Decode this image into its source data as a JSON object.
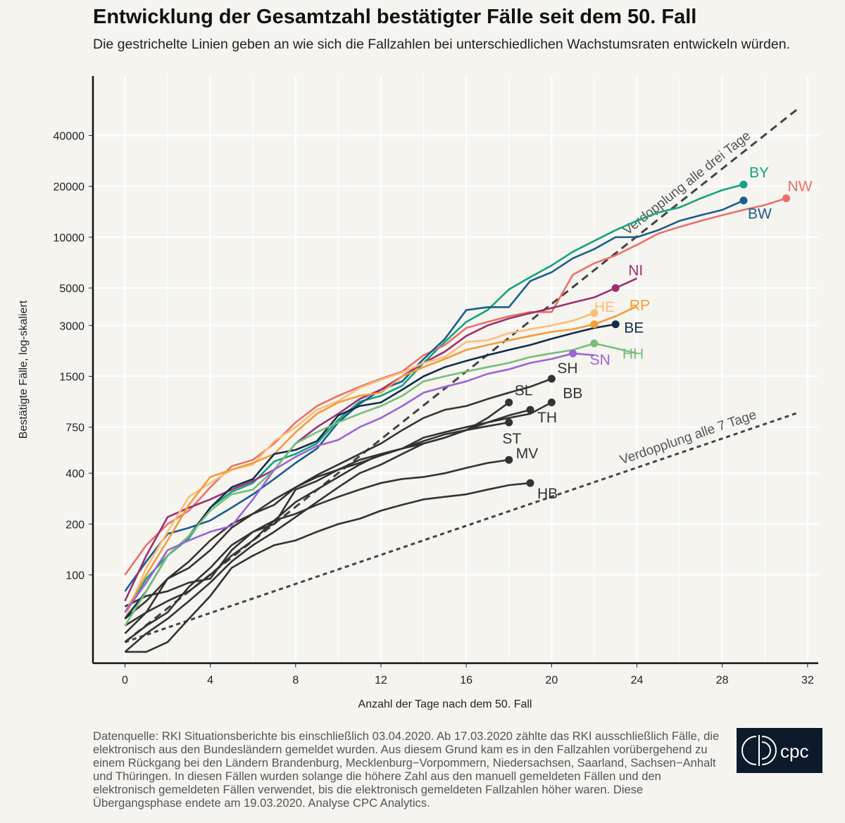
{
  "header": {
    "title": "Entwicklung der Gesamtzahl bestätigter Fälle seit dem 50. Fall",
    "subtitle": "Die gestrichelte Linien geben an wie sich die Fallzahlen bei unterschiedlichen Wachstumsraten entwickeln würden."
  },
  "chart_data": {
    "type": "line",
    "xlabel": "Anzahl der Tage nach dem 50. Fall",
    "ylabel": "Bestätigte Fälle, log-skaliert",
    "y_scale": "log",
    "xlim": [
      -1.5,
      32.5
    ],
    "ylim": [
      30,
      90000
    ],
    "x_ticks": [
      0,
      4,
      8,
      12,
      16,
      20,
      24,
      28,
      32
    ],
    "y_ticks": [
      100,
      200,
      400,
      750,
      1500,
      3000,
      5000,
      10000,
      20000,
      40000
    ],
    "grid": true,
    "legend": "none",
    "reference_lines": [
      {
        "label": "Verdopplung alle drei Tage",
        "x": [
          0,
          31.5
        ],
        "y": [
          40,
          57000
        ]
      },
      {
        "label": "Verdopplung alle 7 Tage",
        "x": [
          0,
          31.5
        ],
        "y": [
          40,
          908
        ]
      }
    ],
    "series": [
      {
        "name": "BY",
        "color": "#14a37f",
        "x": [
          0,
          1,
          2,
          3,
          4,
          5,
          6,
          7,
          8,
          9,
          10,
          11,
          12,
          13,
          14,
          15,
          16,
          17,
          18,
          19,
          20,
          21,
          22,
          23,
          24,
          25,
          26,
          27,
          28,
          29
        ],
        "values": [
          60,
          95,
          130,
          165,
          250,
          310,
          350,
          470,
          520,
          600,
          830,
          1060,
          1150,
          1320,
          1800,
          2400,
          3150,
          3700,
          4900,
          5800,
          6800,
          8200,
          9500,
          11000,
          12500,
          14000,
          15000,
          17000,
          19000,
          20500
        ]
      },
      {
        "name": "NW",
        "color": "#e8706a",
        "x": [
          0,
          1,
          2,
          3,
          4,
          5,
          6,
          7,
          8,
          9,
          10,
          11,
          12,
          13,
          14,
          15,
          16,
          17,
          18,
          19,
          20,
          21,
          22,
          23,
          24,
          25,
          26,
          27,
          28,
          29,
          30,
          31
        ],
        "values": [
          100,
          150,
          200,
          240,
          330,
          440,
          480,
          600,
          800,
          1000,
          1150,
          1300,
          1450,
          1600,
          2000,
          2300,
          2900,
          3150,
          3400,
          3600,
          3600,
          6000,
          7000,
          7800,
          9000,
          10500,
          11500,
          12500,
          13500,
          14500,
          15500,
          17000
        ]
      },
      {
        "name": "BW",
        "color": "#1a5d8f",
        "x": [
          0,
          1,
          2,
          3,
          4,
          5,
          6,
          7,
          8,
          9,
          10,
          11,
          12,
          13,
          14,
          15,
          16,
          17,
          18,
          19,
          20,
          21,
          22,
          23,
          24,
          25,
          26,
          27,
          28,
          29
        ],
        "values": [
          80,
          120,
          175,
          190,
          210,
          250,
          300,
          370,
          460,
          560,
          800,
          1030,
          1250,
          1400,
          1900,
          2500,
          3700,
          3850,
          3850,
          5500,
          6200,
          7500,
          8500,
          10000,
          10000,
          11000,
          12500,
          13500,
          14500,
          16500
        ]
      },
      {
        "name": "NI",
        "color": "#9c2f72",
        "x": [
          0,
          1,
          2,
          3,
          4,
          5,
          6,
          7,
          8,
          9,
          10,
          11,
          12,
          13,
          14,
          15,
          16,
          17,
          18,
          19,
          20,
          21,
          22,
          23,
          24
        ],
        "values": [
          70,
          130,
          220,
          250,
          280,
          320,
          360,
          420,
          600,
          750,
          900,
          1100,
          1250,
          1500,
          1800,
          2100,
          2600,
          3000,
          3300,
          3550,
          3800,
          4100,
          4400,
          5000,
          5700
        ]
      },
      {
        "name": "HE",
        "color": "#fbbe79",
        "x": [
          0,
          1,
          2,
          3,
          4,
          5,
          6,
          7,
          8,
          9,
          10,
          11,
          12,
          13,
          14,
          15,
          16,
          17,
          18,
          19,
          20,
          21,
          22
        ],
        "values": [
          55,
          110,
          180,
          290,
          350,
          420,
          450,
          620,
          750,
          950,
          1070,
          1280,
          1430,
          1580,
          1800,
          1950,
          2400,
          2450,
          2700,
          2850,
          3000,
          3200,
          3550
        ]
      },
      {
        "name": "RP",
        "color": "#f39c3a",
        "x": [
          0,
          1,
          2,
          3,
          4,
          5,
          6,
          7,
          8,
          9,
          10,
          11,
          12,
          13,
          14,
          15,
          16,
          17,
          18,
          19,
          20,
          21,
          22,
          23,
          24
        ],
        "values": [
          60,
          100,
          160,
          260,
          380,
          420,
          460,
          520,
          700,
          900,
          1050,
          1150,
          1200,
          1500,
          1700,
          1900,
          2150,
          2300,
          2450,
          2600,
          2750,
          2850,
          3050,
          3400,
          3900
        ]
      },
      {
        "name": "BE",
        "color": "#132c4d",
        "x": [
          0,
          1,
          2,
          3,
          4,
          5,
          6,
          7,
          8,
          9,
          10,
          11,
          12,
          13,
          14,
          15,
          16,
          17,
          18,
          19,
          20,
          21,
          22,
          23
        ],
        "values": [
          55,
          80,
          130,
          170,
          250,
          330,
          370,
          520,
          550,
          620,
          880,
          1000,
          1050,
          1250,
          1500,
          1700,
          1850,
          2000,
          2150,
          2300,
          2500,
          2700,
          2900,
          3050
        ]
      },
      {
        "name": "HH",
        "color": "#78bd7c",
        "x": [
          0,
          1,
          2,
          3,
          4,
          5,
          6,
          7,
          8,
          9,
          10,
          11,
          12,
          13,
          14,
          15,
          16,
          17,
          18,
          19,
          20,
          21,
          22,
          23,
          24
        ],
        "values": [
          50,
          80,
          130,
          170,
          240,
          300,
          320,
          420,
          600,
          700,
          800,
          900,
          1000,
          1150,
          1400,
          1500,
          1600,
          1700,
          1800,
          1950,
          2050,
          2150,
          2350,
          2200,
          2050
        ]
      },
      {
        "name": "SN",
        "color": "#9b64d6",
        "x": [
          0,
          1,
          2,
          3,
          4,
          5,
          6,
          7,
          8,
          9,
          10,
          11,
          12,
          13,
          14,
          15,
          16,
          17,
          18,
          19,
          20,
          21,
          22
        ],
        "values": [
          60,
          90,
          140,
          160,
          180,
          195,
          280,
          420,
          500,
          580,
          630,
          750,
          850,
          1000,
          1200,
          1300,
          1400,
          1550,
          1650,
          1800,
          1900,
          2050,
          2000
        ]
      },
      {
        "name": "SH",
        "color": "#333333",
        "x": [
          0,
          1,
          2,
          3,
          4,
          5,
          6,
          7,
          8,
          9,
          10,
          11,
          12,
          13,
          14,
          15,
          16,
          17,
          18,
          19,
          20
        ],
        "values": [
          55,
          70,
          95,
          110,
          140,
          190,
          230,
          280,
          330,
          390,
          450,
          520,
          600,
          720,
          850,
          950,
          1000,
          1100,
          1200,
          1300,
          1450
        ]
      },
      {
        "name": "SL",
        "color": "#333333",
        "x": [
          0,
          1,
          2,
          3,
          4,
          5,
          6,
          7,
          8,
          9,
          10,
          11,
          12,
          13,
          14,
          15,
          16,
          17,
          18
        ],
        "values": [
          45,
          60,
          95,
          120,
          160,
          200,
          230,
          260,
          330,
          380,
          420,
          480,
          520,
          560,
          600,
          650,
          720,
          850,
          1050
        ]
      },
      {
        "name": "BB",
        "color": "#333333",
        "x": [
          0,
          1,
          2,
          3,
          4,
          5,
          6,
          7,
          8,
          9,
          10,
          11,
          12,
          13,
          14,
          15,
          16,
          17,
          18,
          19,
          20
        ],
        "values": [
          35,
          45,
          55,
          70,
          90,
          120,
          150,
          180,
          220,
          270,
          330,
          400,
          450,
          520,
          600,
          650,
          720,
          800,
          850,
          900,
          1050
        ]
      },
      {
        "name": "TH",
        "color": "#333333",
        "x": [
          0,
          1,
          2,
          3,
          4,
          5,
          6,
          7,
          8,
          9,
          10,
          11,
          12,
          13,
          14,
          15,
          16,
          17,
          18,
          19
        ],
        "values": [
          40,
          50,
          60,
          85,
          110,
          150,
          180,
          200,
          320,
          360,
          420,
          460,
          510,
          560,
          650,
          700,
          750,
          800,
          880,
          950
        ]
      },
      {
        "name": "ST",
        "color": "#333333",
        "x": [
          0,
          1,
          2,
          3,
          4,
          5,
          6,
          7,
          8,
          9,
          10,
          11,
          12,
          13,
          14,
          15,
          16,
          17,
          18
        ],
        "values": [
          50,
          60,
          70,
          80,
          100,
          130,
          160,
          210,
          270,
          320,
          380,
          450,
          520,
          560,
          620,
          680,
          720,
          760,
          800
        ]
      },
      {
        "name": "MV",
        "color": "#333333",
        "x": [
          0,
          1,
          2,
          3,
          4,
          5,
          6,
          7,
          8,
          9,
          10,
          11,
          12,
          13,
          14,
          15,
          16,
          17,
          18
        ],
        "values": [
          65,
          75,
          80,
          90,
          95,
          140,
          180,
          210,
          230,
          260,
          290,
          320,
          350,
          370,
          380,
          400,
          430,
          460,
          480
        ]
      },
      {
        "name": "HB",
        "color": "#333333",
        "x": [
          0,
          1,
          2,
          3,
          4,
          5,
          6,
          7,
          8,
          9,
          10,
          11,
          12,
          13,
          14,
          15,
          16,
          17,
          18,
          19
        ],
        "values": [
          35,
          35,
          40,
          55,
          75,
          110,
          130,
          150,
          160,
          180,
          200,
          215,
          240,
          260,
          280,
          290,
          300,
          320,
          340,
          350
        ]
      }
    ],
    "end_labels": [
      {
        "name": "BY",
        "color": "#14a37f"
      },
      {
        "name": "NW",
        "color": "#e8706a"
      },
      {
        "name": "BW",
        "color": "#1a5d8f"
      },
      {
        "name": "NI",
        "color": "#9c2f72"
      },
      {
        "name": "HE",
        "color": "#fbbe79"
      },
      {
        "name": "RP",
        "color": "#f39c3a"
      },
      {
        "name": "BE",
        "color": "#132c4d"
      },
      {
        "name": "SN",
        "color": "#9b64d6"
      },
      {
        "name": "HH",
        "color": "#78bd7c"
      },
      {
        "name": "SH",
        "color": "#333333"
      },
      {
        "name": "SL",
        "color": "#333333"
      },
      {
        "name": "BB",
        "color": "#333333"
      },
      {
        "name": "TH",
        "color": "#333333"
      },
      {
        "name": "ST",
        "color": "#333333"
      },
      {
        "name": "MV",
        "color": "#333333"
      },
      {
        "name": "HB",
        "color": "#333333"
      }
    ]
  },
  "footer": {
    "source_note": "Datenquelle: RKI Situationsberichte bis einschließlich 03.04.2020. Ab 17.03.2020 zählte das RKI ausschließlich Fälle, die elektronisch aus den Bundesländern gemeldet wurden. Aus diesem Grund kam es in den Fallzahlen vorübergehend zu einem Rückgang bei den Ländern Brandenburg, Mecklenburg−Vorpommern, Niedersachsen, Saarland, Sachsen−Anhalt und Thüringen. In diesen Fällen wurden solange die höhere Zahl aus den manuell gemeldeten Fällen und den elektronisch gemeldeten Fällen verwendet, bis die elektronisch gemeldeten Fallzahlen höher waren. Diese Übergangsphase endete am 19.03.2020. Analyse CPC Analytics.",
    "logo_text": "CPC"
  }
}
